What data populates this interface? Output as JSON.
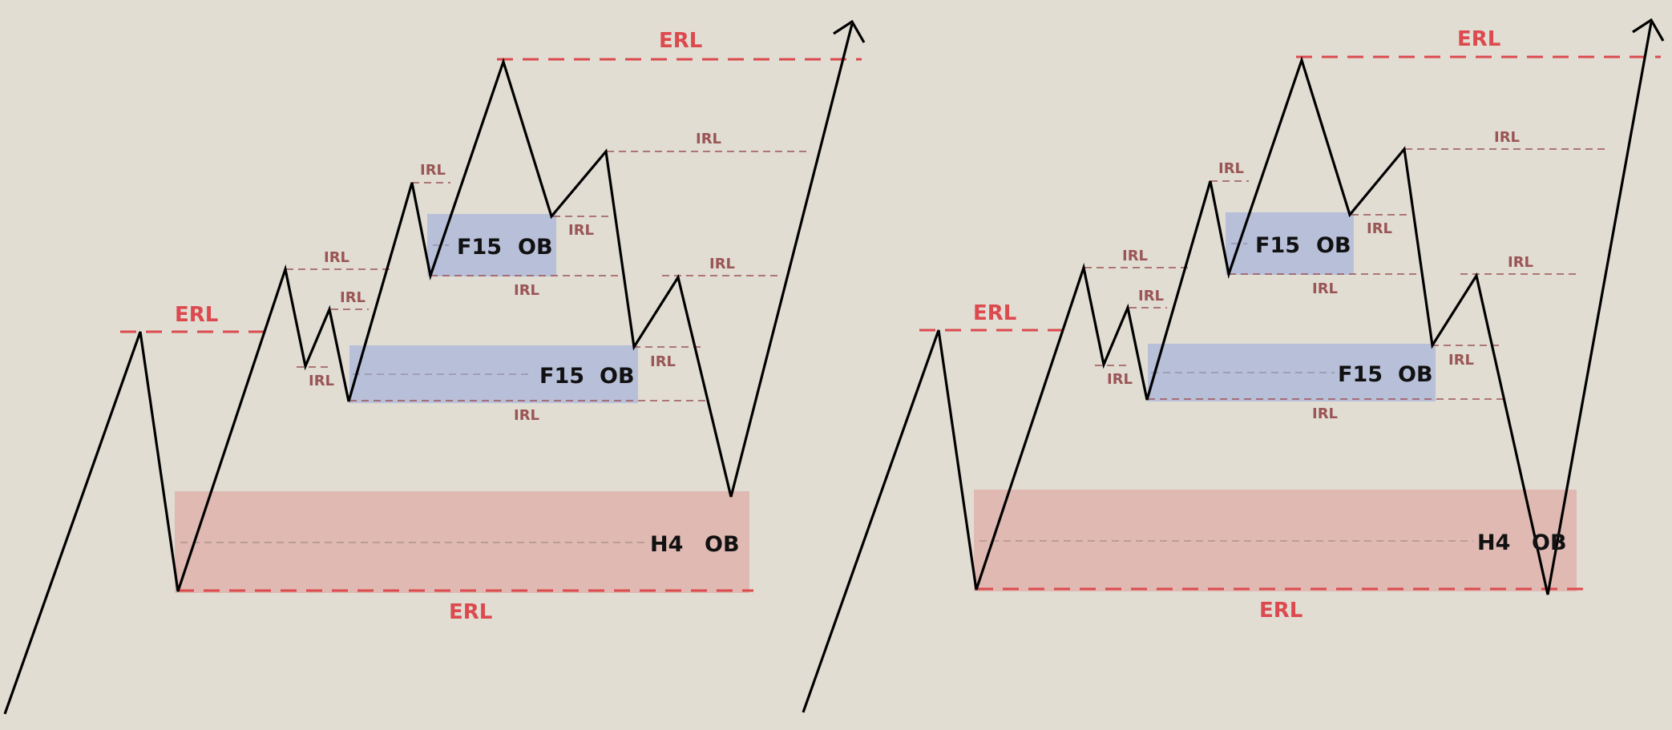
{
  "colors": {
    "background": "#e1ddd3",
    "erl": "#dc4a4f",
    "irl": "#9a5555",
    "f15_zone": "#b8bfd9",
    "h4_zone": "#dfb9b2",
    "price_path": "#000000"
  },
  "labels": {
    "erl": "ERL",
    "irl": "IRL",
    "f15": "F15",
    "h4": "H4",
    "ob": "OB"
  },
  "panels": [
    {
      "scenario": "price reverses from the H4 order block and expands to the external high"
    },
    {
      "scenario": "price sweeps below the H4 order block low and then expands to the external high"
    }
  ]
}
